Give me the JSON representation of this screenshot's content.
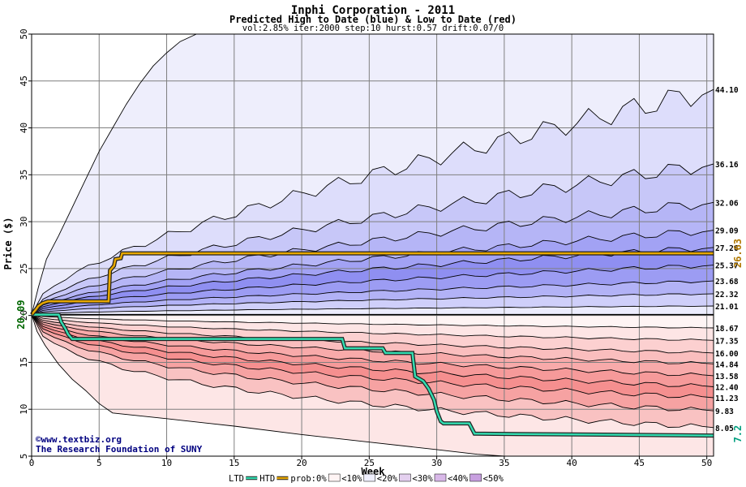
{
  "chart_data": {
    "type": "area",
    "title": "Inphi Corporation - 2011",
    "subtitle": "Predicted High to Date (blue) &  Low to Date (red)",
    "params": "vol:2.85% iter:2000 step:10 hurst:0.57 drift:0.07/0",
    "xlabel": "Week",
    "ylabel": "Price ($)",
    "xlim": [
      0,
      50.5
    ],
    "ylim": [
      5,
      50
    ],
    "xticks": [
      0,
      5,
      10,
      15,
      20,
      25,
      30,
      35,
      40,
      45,
      50
    ],
    "yticks": [
      5,
      10,
      15,
      20,
      25,
      30,
      35,
      40,
      45,
      50
    ],
    "grid": true,
    "start_price": 20.09,
    "start_price_label": "20.09",
    "current_price_label": "26.63",
    "current_low_label": "7.2",
    "high_quantiles": [
      {
        "label": "44.10",
        "end": 44.1,
        "k": 2.9
      },
      {
        "label": "36.16",
        "end": 36.16,
        "k": 1.92
      },
      {
        "label": "32.06",
        "end": 32.06,
        "k": 1.43
      },
      {
        "label": "29.09",
        "end": 29.09,
        "k": 1.07
      },
      {
        "label": "27.26",
        "end": 27.26,
        "k": 0.85
      },
      {
        "label": "25.37",
        "end": 25.37,
        "k": 0.63
      },
      {
        "label": "23.68",
        "end": 23.68,
        "k": 0.43
      },
      {
        "label": "22.32",
        "end": 22.32,
        "k": 0.27
      },
      {
        "label": "21.01",
        "end": 21.01,
        "k": 0.11
      }
    ],
    "low_quantiles": [
      {
        "label": "18.67",
        "end": 18.67,
        "k": 0.17
      },
      {
        "label": "17.35",
        "end": 17.35,
        "k": 0.32
      },
      {
        "label": "16.00",
        "end": 16.0,
        "k": 0.49
      },
      {
        "label": "14.84",
        "end": 14.84,
        "k": 0.63
      },
      {
        "label": "13.58",
        "end": 13.58,
        "k": 0.78
      },
      {
        "label": "12.40",
        "end": 12.4,
        "k": 0.92
      },
      {
        "label": "11.23",
        "end": 11.23,
        "k": 1.06
      },
      {
        "label": "9.83",
        "end": 9.83,
        "k": 1.23
      },
      {
        "label": "8.05",
        "end": 8.05,
        "k": 1.44
      }
    ],
    "htd_series": [
      [
        0,
        20.09
      ],
      [
        0.3,
        20.6
      ],
      [
        0.5,
        21.0
      ],
      [
        0.8,
        21.3
      ],
      [
        1.2,
        21.5
      ],
      [
        5.7,
        21.5
      ],
      [
        5.8,
        24.8
      ],
      [
        6.1,
        25.3
      ],
      [
        6.2,
        26.0
      ],
      [
        6.6,
        26.1
      ],
      [
        6.7,
        26.63
      ],
      [
        50.5,
        26.63
      ]
    ],
    "ltd_series": [
      [
        0,
        20.09
      ],
      [
        2.0,
        20.09
      ],
      [
        2.2,
        19.3
      ],
      [
        2.5,
        18.6
      ],
      [
        2.7,
        18.0
      ],
      [
        3.0,
        17.5
      ],
      [
        23.0,
        17.5
      ],
      [
        23.2,
        16.5
      ],
      [
        26.0,
        16.5
      ],
      [
        26.2,
        16.0
      ],
      [
        28.2,
        16.0
      ],
      [
        28.4,
        13.5
      ],
      [
        29.0,
        13.0
      ],
      [
        29.4,
        12.2
      ],
      [
        29.8,
        11.0
      ],
      [
        30.0,
        9.8
      ],
      [
        30.3,
        8.7
      ],
      [
        30.5,
        8.5
      ],
      [
        32.4,
        8.5
      ],
      [
        32.8,
        7.4
      ],
      [
        50.5,
        7.2
      ]
    ],
    "outer_upper": [
      [
        0,
        20.09
      ],
      [
        0.5,
        23
      ],
      [
        1.1,
        26
      ],
      [
        2,
        28.5
      ],
      [
        3,
        31.5
      ],
      [
        4,
        34.5
      ],
      [
        5,
        37.5
      ],
      [
        6,
        40
      ],
      [
        7,
        42.5
      ],
      [
        8,
        44.7
      ],
      [
        9,
        46.6
      ],
      [
        10,
        48
      ],
      [
        11,
        49.2
      ],
      [
        12.2,
        50
      ]
    ],
    "outer_lower": [
      [
        0,
        20.09
      ],
      [
        0.4,
        18.3
      ],
      [
        1,
        16.8
      ],
      [
        2,
        14.8
      ],
      [
        3,
        13.2
      ],
      [
        4,
        12
      ],
      [
        5,
        10.6
      ],
      [
        6,
        9.6
      ],
      [
        10,
        9
      ],
      [
        15,
        8.2
      ],
      [
        20,
        7.3
      ],
      [
        25,
        6.5
      ],
      [
        30,
        5.7
      ],
      [
        33,
        5.2
      ],
      [
        35,
        5
      ]
    ],
    "colors": {
      "blue_bands": [
        "#eeeefc",
        "#ddddfb",
        "#c7c7f8",
        "#b5b5f6",
        "#a2a2f4",
        "#8f8ff1",
        "#9c9cf3",
        "#b2b2f6",
        "#cfcffa",
        "#ececfd"
      ],
      "red_bands": [
        "#fef4f4",
        "#fde5e5",
        "#fcd0d0",
        "#fabebe",
        "#f8aaaa",
        "#f69a9a",
        "#f58f8f",
        "#f6a2a2",
        "#f9c2c2",
        "#fde6e6"
      ],
      "htd": "#e8a800",
      "ltd": "#33dcb0",
      "start_label": "#006600",
      "current_label": "#b07800",
      "low_label": "#00a080",
      "footer": "#000080"
    },
    "watermark": [
      "©www.textbiz.org",
      "The Research Foundation of SUNY"
    ],
    "legend": {
      "placement": "bottom",
      "items": [
        "LTD",
        "HTD",
        "prob:0%",
        "<10%",
        "<20%",
        "<30%",
        "<40%",
        "<50%"
      ]
    }
  }
}
